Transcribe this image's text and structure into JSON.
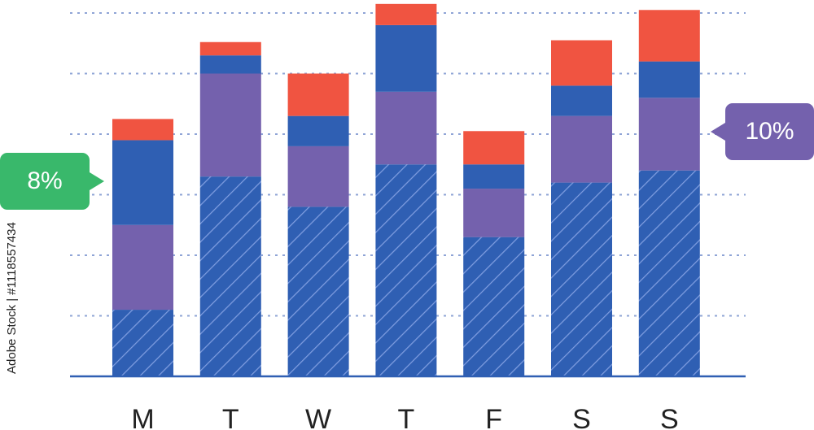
{
  "chart_data": {
    "type": "bar",
    "stacked": true,
    "categories": [
      "M",
      "T",
      "W",
      "T",
      "F",
      "S",
      "S"
    ],
    "series": [
      {
        "values": [
          11,
          33,
          28,
          35,
          23,
          32,
          34
        ],
        "color": "#2f5fb3",
        "pattern": "hatched"
      },
      {
        "values": [
          14,
          17,
          10,
          12,
          8,
          11,
          12
        ],
        "color": "#7461ad"
      },
      {
        "values": [
          14,
          3,
          5,
          11,
          4,
          5,
          6
        ],
        "color": "#2f5fb3"
      },
      {
        "values": [
          3.5,
          2.2,
          7,
          3.5,
          5.5,
          7.5,
          8.5
        ],
        "color": "#f05441"
      }
    ],
    "ylim": [
      0,
      60
    ],
    "grid": true,
    "grid_values": [
      10,
      20,
      30,
      40,
      50,
      60
    ],
    "grid_style": "dashed",
    "colors": {
      "grid": "#8fa4d6",
      "axis": "#2f5fb3",
      "hatch": "#7f9de0",
      "tick_text": "#222222"
    }
  },
  "callouts": [
    {
      "text": "8%",
      "color": "#39b86b",
      "side": "left"
    },
    {
      "text": "10%",
      "color": "#7461ad",
      "side": "right"
    }
  ],
  "watermark": {
    "id_text": "Adobe Stock | #1118557434"
  }
}
